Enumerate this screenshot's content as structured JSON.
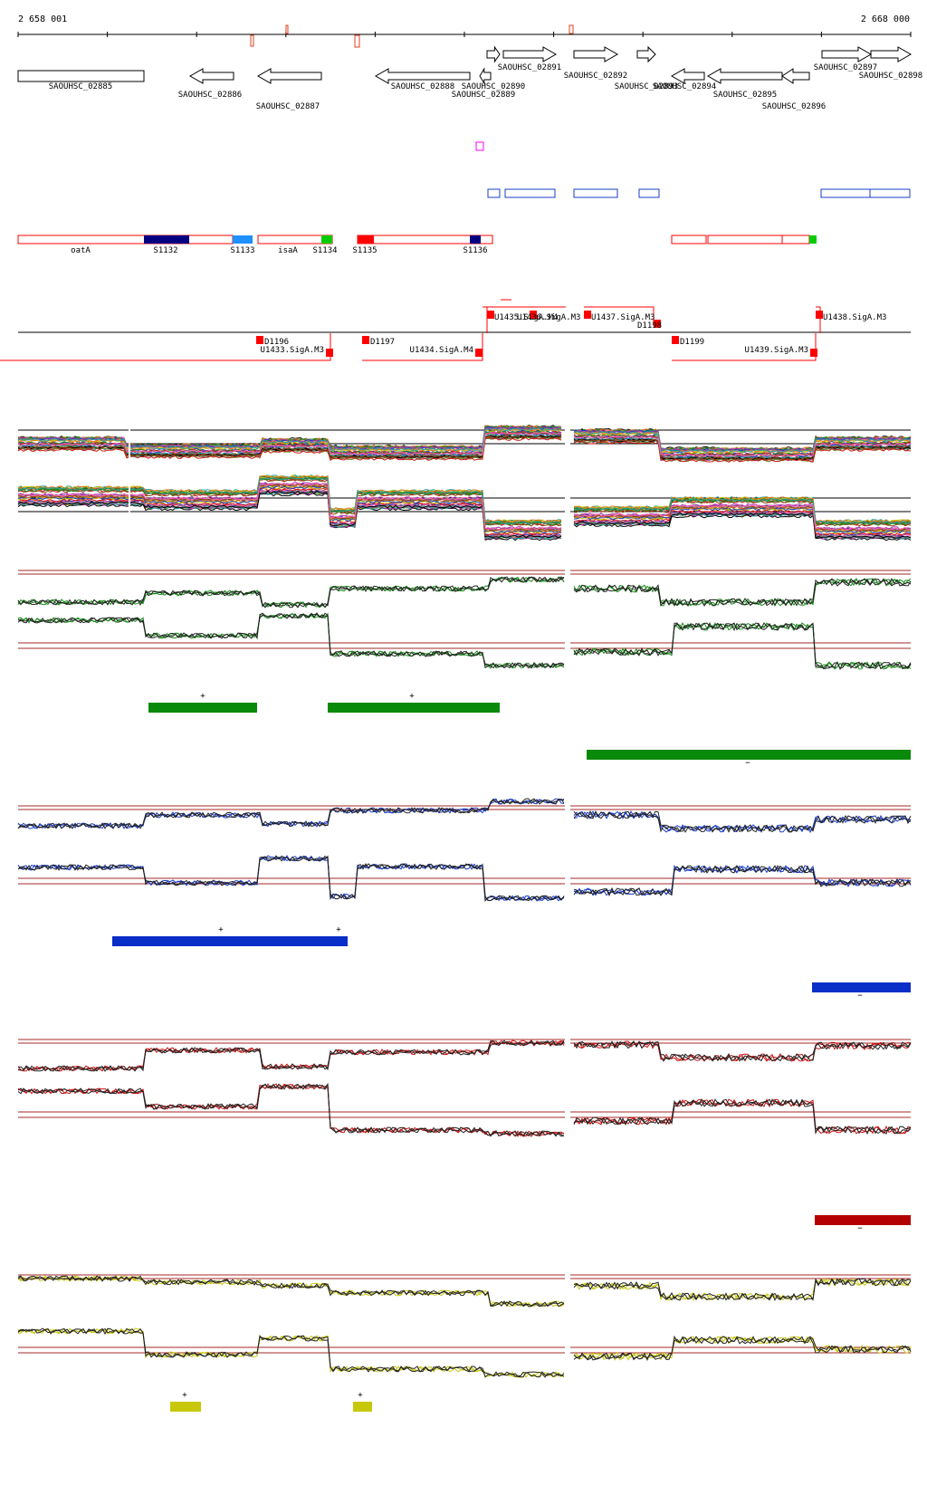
{
  "ruler": {
    "start_label": "2 658 001",
    "end_label": "2 668 000"
  },
  "genes": [
    {
      "label": "SAOUHSC_02885",
      "dir": "none"
    },
    {
      "label": "SAOUHSC_02886",
      "dir": "left"
    },
    {
      "label": "SAOUHSC_02887",
      "dir": "left"
    },
    {
      "label": "SAOUHSC_02888",
      "dir": "left"
    },
    {
      "label": "SAOUHSC_02890",
      "dir": "right"
    },
    {
      "label": "SAOUHSC_02889",
      "dir": "left"
    },
    {
      "label": "SAOUHSC_02891",
      "dir": "right"
    },
    {
      "label": "SAOUHSC_02892",
      "dir": "right"
    },
    {
      "label": "SAOUHSC_02893",
      "dir": "right"
    },
    {
      "label": "SAOUHSC_02894",
      "dir": "left"
    },
    {
      "label": "SAOUHSC_02895",
      "dir": "left"
    },
    {
      "label": "SAOUHSC_02896",
      "dir": "left"
    },
    {
      "label": "SAOUHSC_02897",
      "dir": "right"
    },
    {
      "label": "SAOUHSC_02898",
      "dir": "right"
    }
  ],
  "annotations": [
    {
      "label": "oatA",
      "fill": "none"
    },
    {
      "label": "S1132",
      "fill": "#000080"
    },
    {
      "label": "S1133",
      "fill": "#1e90ff"
    },
    {
      "label": "isaA",
      "fill": "none"
    },
    {
      "label": "S1134",
      "fill": "#00cc00"
    },
    {
      "label": "S1135",
      "fill": "#ff0000"
    },
    {
      "label": "S1136",
      "fill": "#000080"
    }
  ],
  "transcripts": [
    {
      "label": "D1196"
    },
    {
      "label": "U1433.SigA.M3"
    },
    {
      "label": "D1197"
    },
    {
      "label": "U1434.SigA.M4"
    },
    {
      "label": "U1435.SigA.M4"
    },
    {
      "label": "U1436.SigA.M3"
    },
    {
      "label": "U1437.SigA.M3"
    },
    {
      "label": "D1198"
    },
    {
      "label": "D1199"
    },
    {
      "label": "U1439.SigA.M3"
    },
    {
      "label": "U1438.SigA.M3"
    }
  ],
  "tracks": [
    {
      "name": "green",
      "color": "#1a8c1a",
      "bar_color": "#0a8a0a",
      "marks": [
        "+",
        "+",
        "−"
      ]
    },
    {
      "name": "blue",
      "color": "#1a3cc8",
      "bar_color": "#0a2ec8",
      "marks": [
        "+",
        "+",
        "−"
      ]
    },
    {
      "name": "red",
      "color": "#c81414",
      "bar_color": "#b40000",
      "marks": [
        "−"
      ]
    },
    {
      "name": "yellow",
      "color": "#c8c814",
      "bar_color": "#c8c80a",
      "marks": [
        "+",
        "+"
      ]
    }
  ],
  "colors": {
    "axis": "#000000",
    "annotation_border": "#ff0000",
    "threshold": "#a52a2a"
  }
}
